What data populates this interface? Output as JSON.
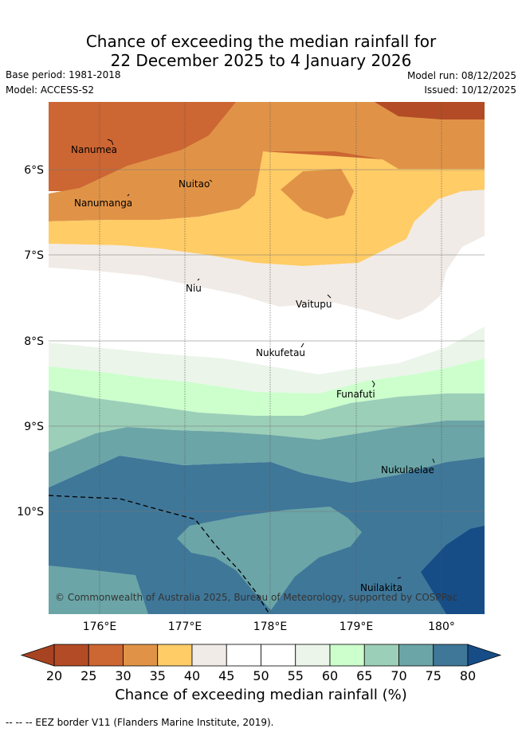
{
  "title_line1": "Chance of exceeding the median rainfall for",
  "title_line2": "22 December 2025 to 4 January 2026",
  "base_period": "Base period: 1981-2018",
  "model": "Model: ACCESS-S2",
  "model_run": "Model run: 08/12/2025",
  "issued": "Issued: 10/12/2025",
  "lat_labels": [
    "6°S",
    "7°S",
    "8°S",
    "9°S",
    "10°S"
  ],
  "lon_labels": [
    "176°E",
    "177°E",
    "178°E",
    "179°E",
    "180°"
  ],
  "islands": [
    "Nanumea",
    "Nuitao",
    "Nanumanga",
    "Niu",
    "Vaitupu",
    "Nukufetau",
    "Funafuti",
    "Nukulaelae",
    "Nuilakita"
  ],
  "copyright": "© Commonwealth of Australia 2025, Bureau of Meteorology, supported by COSPPac",
  "colorbar": {
    "ticks": [
      "20",
      "25",
      "30",
      "35",
      "40",
      "45",
      "50",
      "55",
      "60",
      "65",
      "70",
      "75",
      "80"
    ],
    "colors": [
      "#a84321",
      "#b34b26",
      "#cc6633",
      "#e09347",
      "#ffcc66",
      "#f0ebe6",
      "#ffffff",
      "#ffffff",
      "#ebf5ea",
      "#ccffcc",
      "#9ccfb8",
      "#6ba5a7",
      "#3f7799",
      "#164d87"
    ],
    "label": "Chance of exceeding median rainfall (%)"
  },
  "eez_legend": "-- -- -- EEZ border V11 (Flanders Marine Institute, 2019)."
}
